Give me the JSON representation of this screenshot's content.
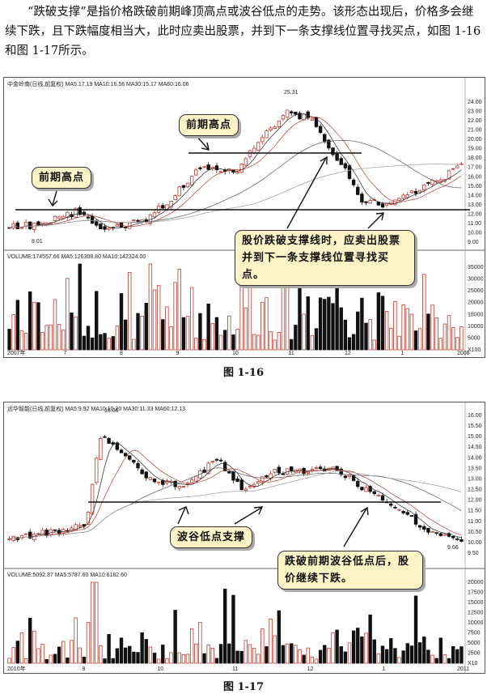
{
  "text": {
    "paragraph": "“跌破支撑”是指价格跌破前期峰顶高点或波谷低点的走势。该形态出现后，价格多会继续下跌，且下跌幅度相当大，此时应卖出股票，并到下一条支撑线位置寻找买点，如图 1-16和图 1-17所示。"
  },
  "figure1": {
    "caption": "图 1-16",
    "header": "中金岭南(日线,前复权)  MA5:17.19  MA10:16.56  MA30:15.17  MA60:16.06",
    "volume_header": "VOLUME:174557.66  MA5:126308.80  MA10:142324.00",
    "annotation_left": "前期高点",
    "annotation_mid": "前期高点",
    "annotation_main": "股价跌破支撑线时，应卖出股票并到下一条支撑线位置寻找买点。",
    "high_label": "25.31",
    "low_label": "8.01",
    "y_ticks": [
      "24.00",
      "23.00",
      "22.00",
      "21.00",
      "20.00",
      "19.00",
      "18.00",
      "17.00",
      "16.00",
      "15.00",
      "14.00",
      "13.00",
      "12.00",
      "11.00",
      "10.00",
      "9.00"
    ],
    "vol_ticks": [
      "35000",
      "30000",
      "25000",
      "20000",
      "15000",
      "10000",
      "5000",
      "X100"
    ],
    "x_ticks": [
      "2007年",
      "7",
      "8",
      "9",
      "10",
      "11",
      "12",
      "1",
      "2008"
    ],
    "colors": {
      "up": "#c0392b",
      "down": "#111111",
      "ann_bg": "#fdf3c6"
    }
  },
  "figure2": {
    "caption": "图 1-17",
    "header": "远华智能(日线,前复权)  MA5:9.92  MA10:10.20  MA30:11.33  MA60:12.13",
    "volume_header": "VOLUME:5092.37  MA5:5787.60  MA10:6182.60",
    "annotation_left": "波谷低点支撑",
    "annotation_main": "跌破前期波谷低点后，股价继续下跌。",
    "high_label": "16.06",
    "low_label": "9.66",
    "y_ticks": [
      "16.00",
      "15.50",
      "15.00",
      "14.50",
      "14.00",
      "13.50",
      "13.00",
      "12.50",
      "12.00",
      "11.50",
      "11.00",
      "10.50",
      "10.00",
      "9.50"
    ],
    "vol_ticks": [
      "20000",
      "17500",
      "15000",
      "12500",
      "10000",
      "7500",
      "5000",
      "2500",
      "X10"
    ],
    "x_ticks": [
      "2010年",
      "9",
      "10",
      "11",
      "12",
      "1",
      "2011"
    ],
    "colors": {
      "up": "#c0392b",
      "down": "#111111",
      "ann_bg": "#fdf3c6"
    }
  }
}
